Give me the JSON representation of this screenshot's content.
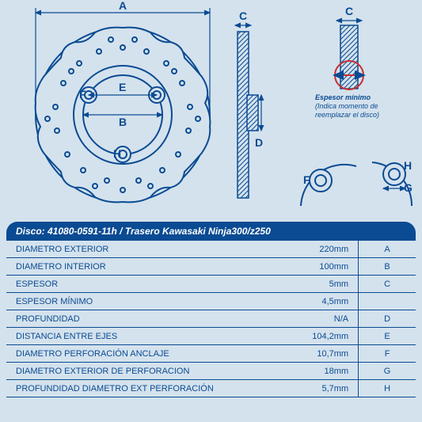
{
  "colors": {
    "background": "#d4e2ed",
    "line": "#0a4b93",
    "headerBg": "#0a4b93",
    "headerText": "#ffffff"
  },
  "header": "Disco: 41080-0591-11h / Trasero Kawasaki Ninja300/z250",
  "caption": {
    "title": "Espesor mínimo",
    "sub": "(Indica momento de reemplazar el disco)"
  },
  "letters": {
    "A": "A",
    "B": "B",
    "C": "C",
    "D": "D",
    "E": "E",
    "F": "F",
    "G": "G",
    "H": "H"
  },
  "specs": [
    {
      "label": "DIAMETRO EXTERIOR",
      "value": "220mm",
      "letter": "A"
    },
    {
      "label": "DIAMETRO INTERIOR",
      "value": "100mm",
      "letter": "B"
    },
    {
      "label": "ESPESOR",
      "value": "5mm",
      "letter": "C"
    },
    {
      "label": "ESPESOR MÍNIMO",
      "value": "4,5mm",
      "letter": ""
    },
    {
      "label": "PROFUNDIDAD",
      "value": "N/A",
      "letter": "D"
    },
    {
      "label": "DISTANCIA ENTRE EJES",
      "value": "104,2mm",
      "letter": "E"
    },
    {
      "label": "DIAMETRO PERFORACIÓN ANCLAJE",
      "value": "10,7mm",
      "letter": "F"
    },
    {
      "label": "DIAMETRO EXTERIOR DE PERFORACION",
      "value": "18mm",
      "letter": "G"
    },
    {
      "label": "PROFUNDIDAD DIAMETRO EXT PERFORACIÓN",
      "value": "5,7mm",
      "letter": "H"
    }
  ]
}
